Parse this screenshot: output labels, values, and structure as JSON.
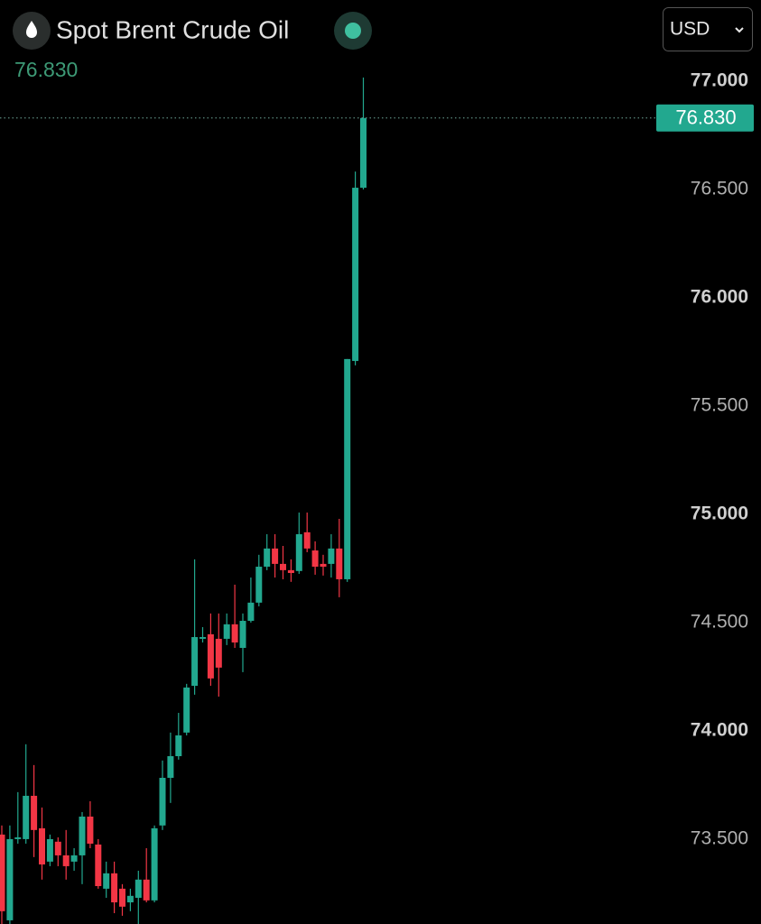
{
  "chart_data": {
    "type": "candlestick",
    "title": "Spot Brent Crude Oil",
    "currency": "USD",
    "last_price": {
      "value": 76.83,
      "label": "76.830"
    },
    "up_color": "#22a88f",
    "down_color": "#f23645",
    "ylim": [
      73.108,
      77.375
    ],
    "yticks": [
      {
        "value": 73.5,
        "label": "73.500"
      },
      {
        "value": 74,
        "label": "74.000"
      },
      {
        "value": 74.5,
        "label": "74.500"
      },
      {
        "value": 75,
        "label": "75.000"
      },
      {
        "value": 75.5,
        "label": "75.500"
      },
      {
        "value": 76,
        "label": "76.000"
      },
      {
        "value": 76.5,
        "label": "76.500"
      },
      {
        "value": 77,
        "label": "77.000"
      }
    ],
    "open": [
      73.521,
      73.125,
      73.5,
      73.5,
      73.7,
      73.55,
      73.396,
      73.488,
      73.425,
      73.396,
      73.425,
      73.604,
      73.475,
      73.271,
      73.342,
      73.271,
      73.208,
      73.229,
      73.313,
      73.217,
      73.563,
      73.783,
      73.883,
      73.992,
      74.208,
      74.425,
      74.446,
      74.425,
      74.425,
      74.492,
      74.383,
      74.508,
      74.592,
      74.758,
      74.842,
      74.771,
      74.742,
      74.738,
      74.917,
      74.833,
      74.771,
      74.771,
      74.842,
      74.7,
      75.708,
      76.508
    ],
    "high": [
      73.563,
      73.563,
      73.717,
      73.938,
      73.842,
      73.646,
      73.521,
      73.508,
      73.542,
      73.458,
      73.625,
      73.675,
      73.5,
      73.396,
      73.396,
      73.292,
      73.271,
      73.354,
      73.458,
      73.563,
      73.863,
      73.992,
      74.083,
      74.217,
      74.792,
      74.479,
      74.542,
      74.542,
      74.542,
      74.675,
      74.542,
      74.708,
      74.813,
      74.908,
      74.908,
      74.854,
      74.792,
      75.008,
      75.008,
      74.875,
      74.813,
      74.908,
      74.979,
      75.717,
      76.583,
      77.017
    ],
    "low": [
      73.108,
      73.108,
      73.479,
      73.479,
      73.417,
      73.313,
      73.375,
      73.375,
      73.313,
      73.354,
      73.292,
      73.458,
      73.271,
      73.229,
      73.158,
      73.146,
      73.167,
      73.108,
      73.208,
      73.208,
      73.542,
      73.667,
      73.867,
      73.979,
      74.167,
      74.408,
      74.208,
      74.158,
      74.396,
      74.383,
      74.271,
      74.5,
      74.575,
      74.742,
      74.708,
      74.7,
      74.688,
      74.725,
      74.825,
      74.721,
      74.717,
      74.708,
      74.617,
      74.688,
      75.688,
      76.5
    ],
    "close": [
      73.167,
      73.5,
      73.508,
      73.7,
      73.542,
      73.383,
      73.5,
      73.425,
      73.375,
      73.425,
      73.604,
      73.479,
      73.283,
      73.342,
      73.208,
      73.188,
      73.238,
      73.313,
      73.217,
      73.55,
      73.783,
      73.883,
      73.979,
      74.2,
      74.433,
      74.433,
      74.242,
      74.292,
      74.492,
      74.408,
      74.508,
      74.592,
      74.758,
      74.842,
      74.771,
      74.742,
      74.729,
      74.908,
      74.842,
      74.758,
      74.758,
      74.842,
      74.7,
      75.717,
      76.508,
      76.83
    ]
  }
}
